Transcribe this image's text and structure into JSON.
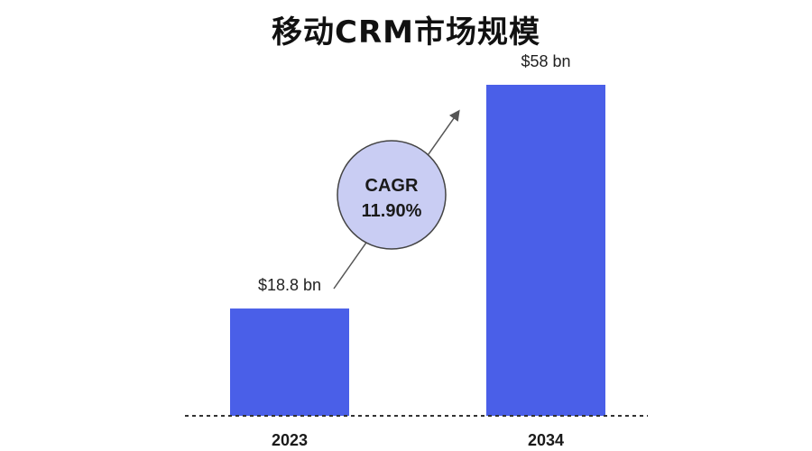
{
  "chart_data": {
    "type": "bar",
    "title": "移动CRM市场规模",
    "categories": [
      "2023",
      "2034"
    ],
    "values": [
      18.8,
      58
    ],
    "data_labels": [
      "$18.8 bn",
      "$58 bn"
    ],
    "unit": "bn USD",
    "ylim": [
      0,
      58
    ],
    "grid": false,
    "legend": "none",
    "bar_color": "#4a5fe8",
    "annotation": {
      "label": "CAGR",
      "value": "11.90%",
      "fill_color": "#c9cdf3",
      "stroke_color": "#444444"
    }
  }
}
